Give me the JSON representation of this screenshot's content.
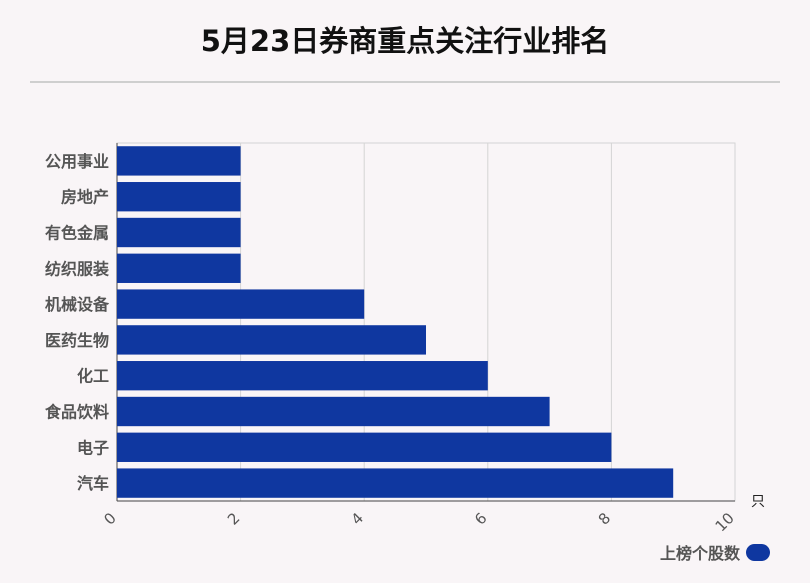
{
  "chart_data": {
    "type": "bar",
    "orientation": "horizontal",
    "title": "5月23日券商重点关注行业排名",
    "categories": [
      "公用事业",
      "房地产",
      "有色金属",
      "纺织服装",
      "机械设备",
      "医药生物",
      "化工",
      "食品饮料",
      "电子",
      "汽车"
    ],
    "series": [
      {
        "name": "上榜个股数",
        "values": [
          2,
          2,
          2,
          2,
          4,
          5,
          6,
          7,
          8,
          9
        ]
      }
    ],
    "xlim": [
      0,
      10
    ],
    "xticks": [
      0,
      2,
      4,
      6,
      8,
      10
    ],
    "xunit": "只",
    "grid": true,
    "legend_position": "bottom-right",
    "bar_color": "#0f37a0"
  }
}
